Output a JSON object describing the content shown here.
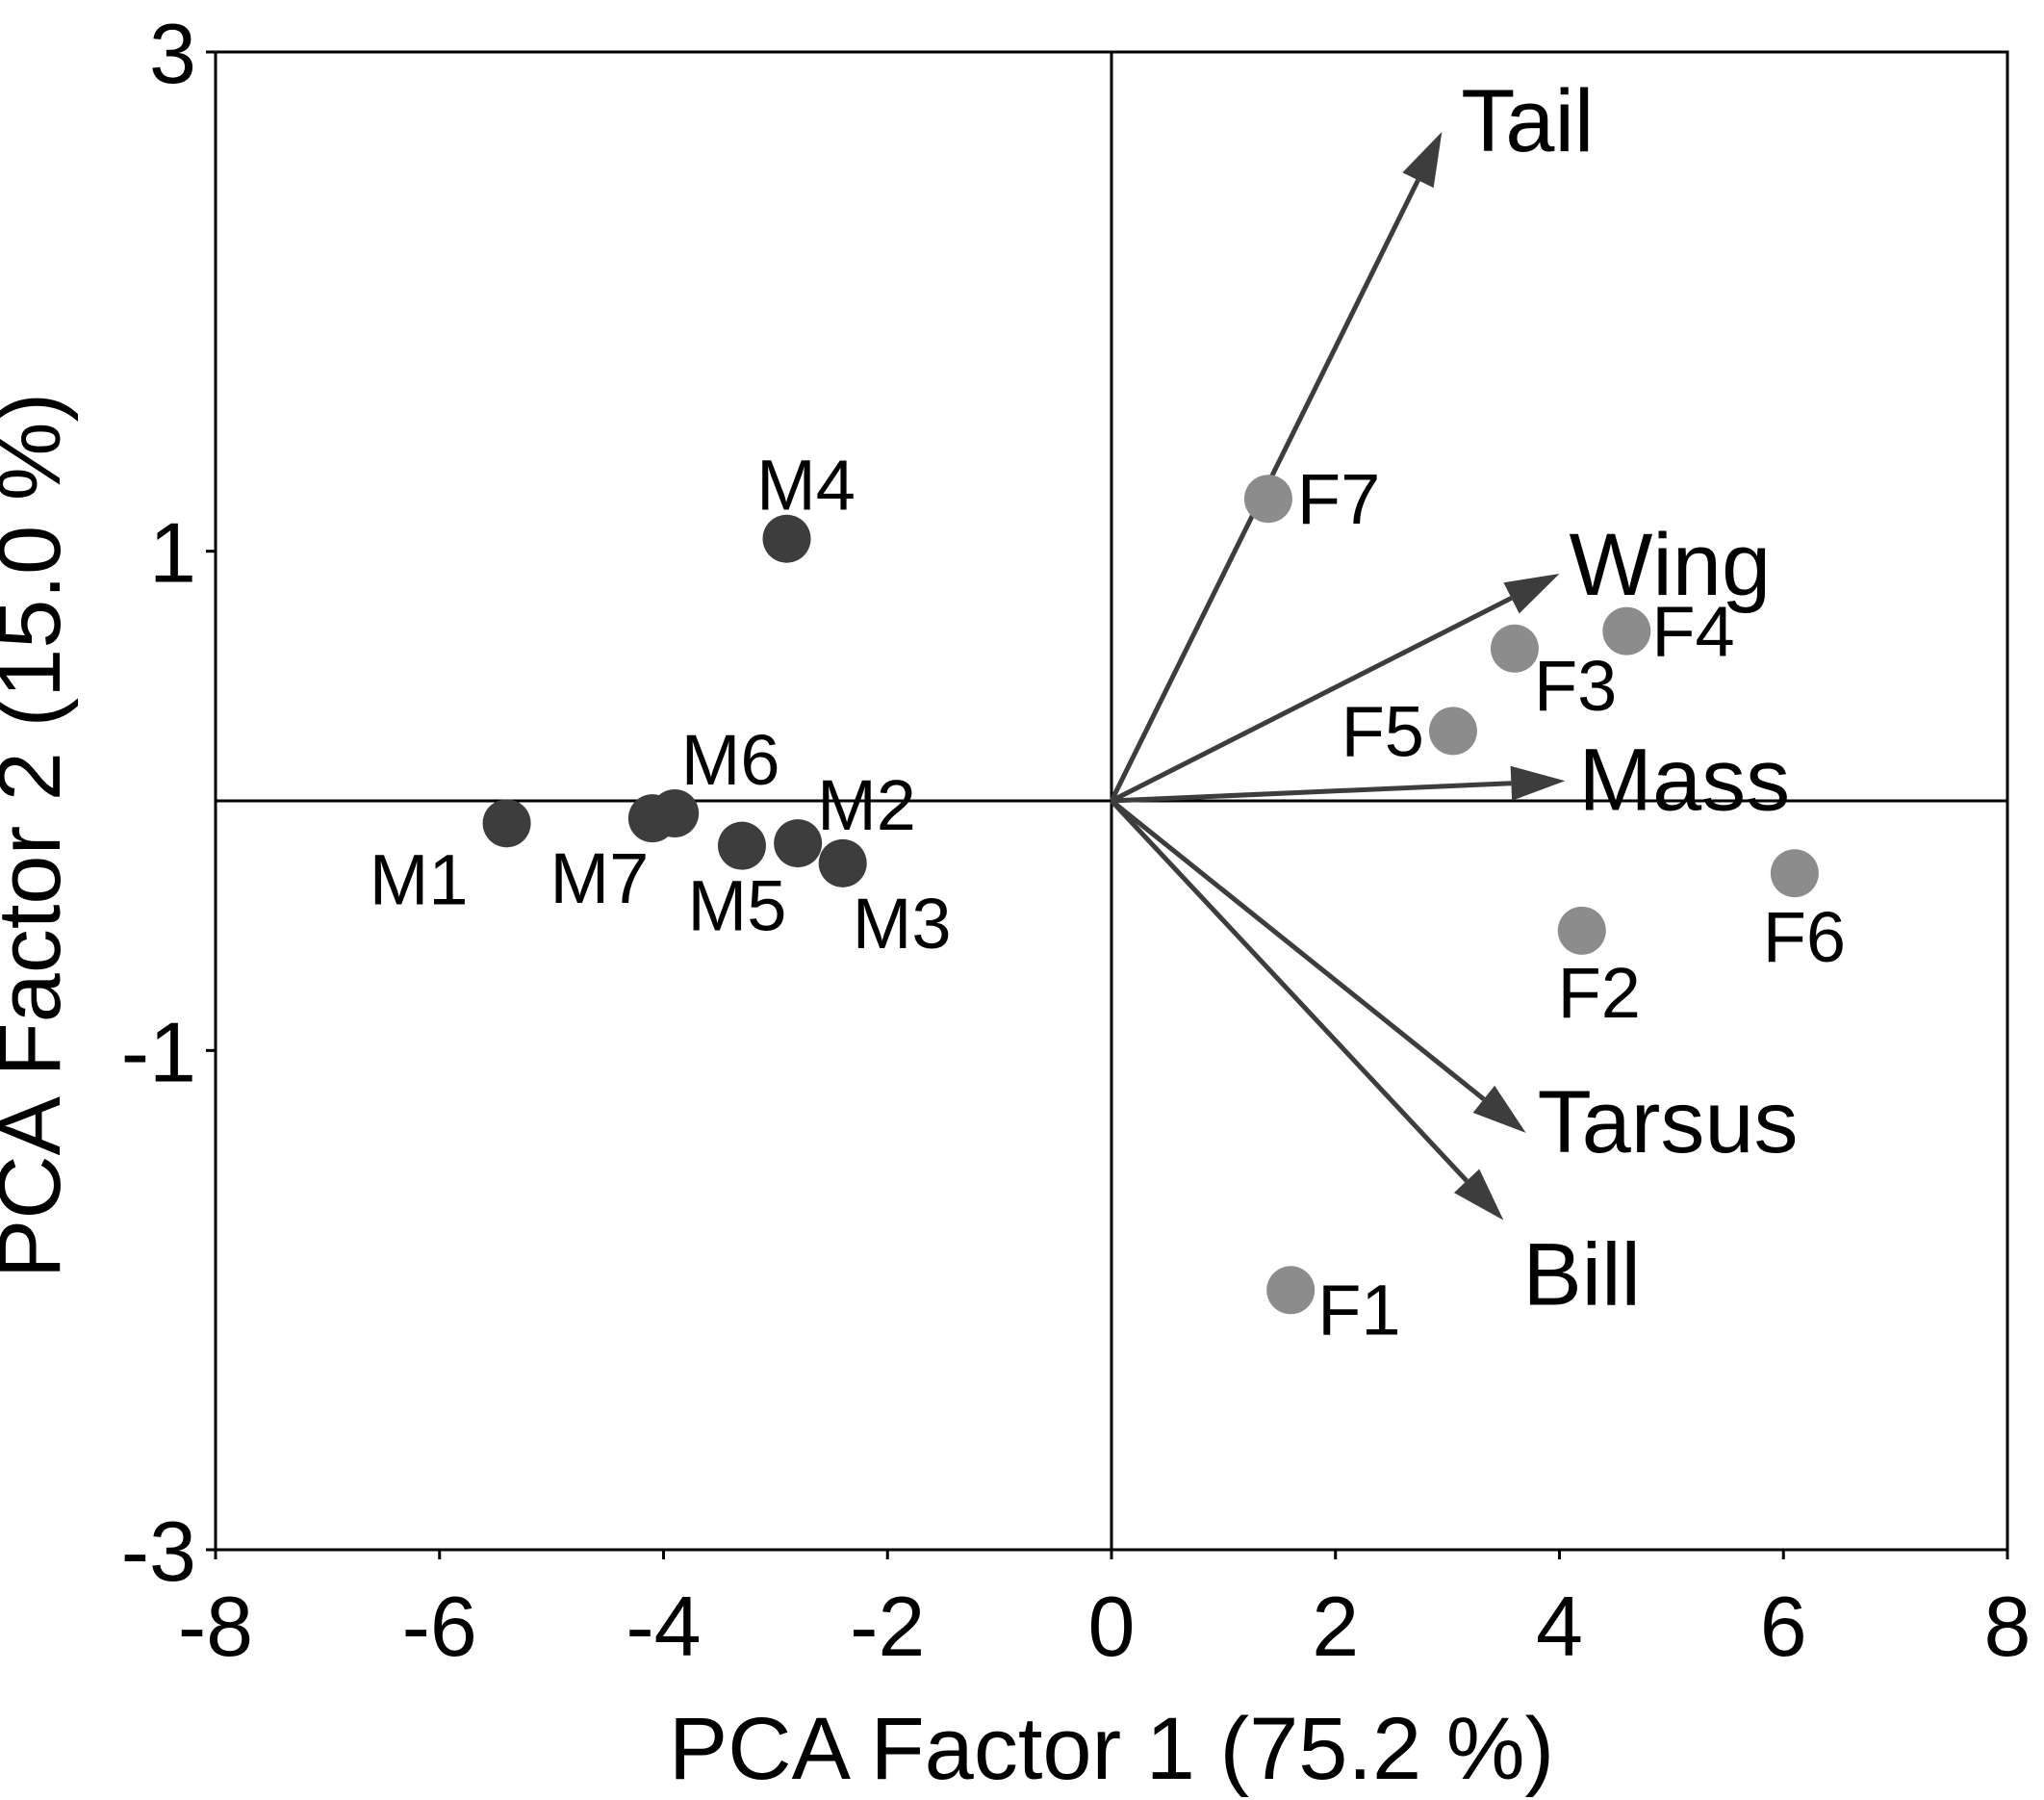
{
  "chart_data": {
    "type": "scatter",
    "title": "",
    "xlabel": "PCA Factor 1 (75.2 %)",
    "ylabel": "PCA Factor 2 (15.0 %)",
    "xlim": [
      -8,
      8
    ],
    "ylim": [
      -3,
      3
    ],
    "xticks": [
      -8,
      -6,
      -4,
      -2,
      0,
      2,
      4,
      6,
      8
    ],
    "xtick_labels": [
      "-8",
      "-6",
      "-4",
      "-2",
      "0",
      "2",
      "4",
      "6",
      "8"
    ],
    "yticks": [
      3,
      1,
      -1,
      -3
    ],
    "ytick_labels": [
      "3",
      "1",
      "-1",
      "-3"
    ],
    "grid": false,
    "zero_lines": true,
    "colors": {
      "male": "#3d3d3d",
      "female": "#8c8c8c",
      "vector": "#3d3d3d",
      "frame": "#000000"
    },
    "series": [
      {
        "group": "male",
        "points": [
          {
            "label": "M1",
            "x": -5.4,
            "y": -0.09
          },
          {
            "label": "M2",
            "x": -2.8,
            "y": -0.17
          },
          {
            "label": "M3",
            "x": -2.4,
            "y": -0.25
          },
          {
            "label": "M4",
            "x": -2.9,
            "y": 1.05
          },
          {
            "label": "M5",
            "x": -3.3,
            "y": -0.18
          },
          {
            "label": "M6",
            "x": -3.9,
            "y": -0.05
          },
          {
            "label": "M7",
            "x": -4.1,
            "y": -0.07
          }
        ]
      },
      {
        "group": "female",
        "points": [
          {
            "label": "F1",
            "x": 1.6,
            "y": -1.96
          },
          {
            "label": "F2",
            "x": 4.2,
            "y": -0.52
          },
          {
            "label": "F3",
            "x": 3.6,
            "y": 0.61
          },
          {
            "label": "F4",
            "x": 4.6,
            "y": 0.68
          },
          {
            "label": "F5",
            "x": 3.05,
            "y": 0.28
          },
          {
            "label": "F6",
            "x": 6.1,
            "y": -0.29
          },
          {
            "label": "F7",
            "x": 1.4,
            "y": 1.21
          }
        ]
      }
    ],
    "vectors": [
      {
        "label": "Tail",
        "x": 2.95,
        "y": 2.68
      },
      {
        "label": "Wing",
        "x": 4.0,
        "y": 0.91
      },
      {
        "label": "Mass",
        "x": 4.05,
        "y": 0.08
      },
      {
        "label": "Tarsus",
        "x": 3.7,
        "y": -1.33
      },
      {
        "label": "Bill",
        "x": 3.5,
        "y": -1.68
      }
    ]
  }
}
